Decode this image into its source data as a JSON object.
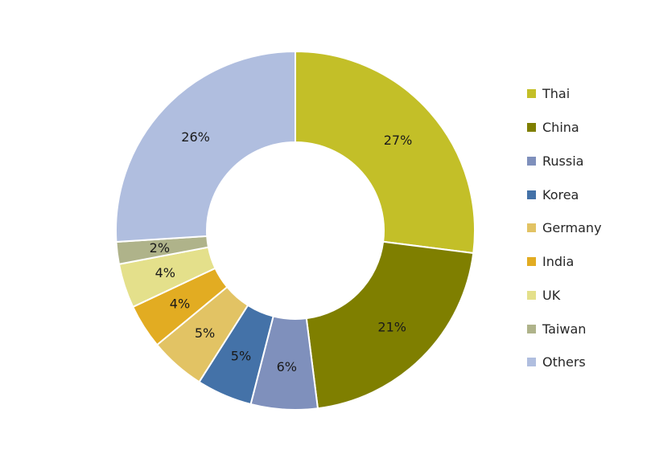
{
  "chart_data": {
    "type": "pie",
    "donut": true,
    "title": "",
    "legend_position": "right",
    "slices": [
      {
        "label": "Thai",
        "value": 27,
        "display": "27%",
        "color": "#C3BF28"
      },
      {
        "label": "China",
        "value": 21,
        "display": "21%",
        "color": "#7F7F00"
      },
      {
        "label": "Russia",
        "value": 6,
        "display": "6%",
        "color": "#7F90BC"
      },
      {
        "label": "Korea",
        "value": 5,
        "display": "5%",
        "color": "#4472A8"
      },
      {
        "label": "Germany",
        "value": 5,
        "display": "5%",
        "color": "#E2C364"
      },
      {
        "label": "India",
        "value": 4,
        "display": "4%",
        "color": "#E2AC22"
      },
      {
        "label": "UK",
        "value": 4,
        "display": "4%",
        "color": "#E4E08B"
      },
      {
        "label": "Taiwan",
        "value": 2,
        "display": "2%",
        "color": "#AFB38A"
      },
      {
        "label": "Others",
        "value": 26,
        "display": "26%",
        "color": "#B0BEDF"
      }
    ]
  }
}
